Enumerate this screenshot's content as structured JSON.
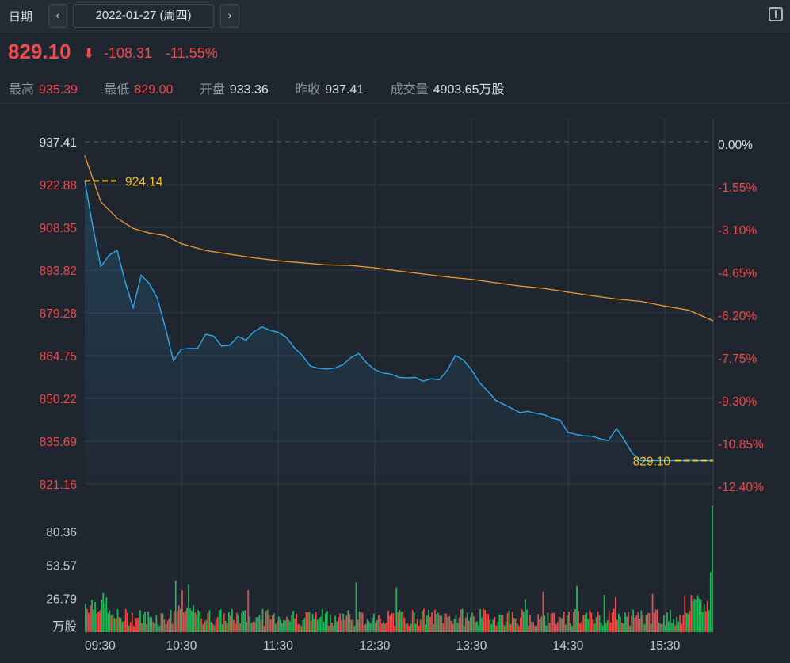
{
  "header": {
    "date_label": "日期",
    "prev_symbol": "‹",
    "next_symbol": "›",
    "date_value": "2022-01-27 (周四)",
    "panel_icon": "panel-toggle-icon"
  },
  "quote": {
    "price": "829.10",
    "arrow": "⬇",
    "change": "-108.31",
    "change_pct": "-11.55%"
  },
  "stats": [
    {
      "label": "最高",
      "value": "935.39",
      "color": "red"
    },
    {
      "label": "最低",
      "value": "829.00",
      "color": "red"
    },
    {
      "label": "开盘",
      "value": "933.36",
      "color": "white"
    },
    {
      "label": "昨收",
      "value": "937.41",
      "color": "white"
    },
    {
      "label": "成交量",
      "value": "4903.65万股",
      "color": "white"
    }
  ],
  "colors": {
    "price_line": "#2fb0f5",
    "avg_line": "#f39b2d",
    "up": "#f04a4a",
    "down": "#27b45a",
    "marker": "#f5c518"
  },
  "chart_data": {
    "type": "line",
    "prev_close": 937.41,
    "price_ticks": [
      "937.41",
      "922.88",
      "908.35",
      "893.82",
      "879.28",
      "864.75",
      "850.22",
      "835.69",
      "821.16"
    ],
    "pct_ticks": [
      "0.00%",
      "-1.55%",
      "-3.10%",
      "-4.65%",
      "-6.20%",
      "-7.75%",
      "-9.30%",
      "-10.85%",
      "-12.40%"
    ],
    "ylim": [
      821.16,
      937.41
    ],
    "x_ticks": [
      "09:30",
      "10:30",
      "11:30",
      "12:30",
      "13:30",
      "14:30",
      "15:30"
    ],
    "session": [
      "09:30",
      "16:00"
    ],
    "markers": [
      {
        "label": "924.14",
        "value": 924.14,
        "position": "open"
      },
      {
        "label": "829.10",
        "value": 829.1,
        "position": "close"
      }
    ],
    "series": [
      {
        "x": [
          "09:30",
          "09:35",
          "09:40",
          "09:45",
          "09:50",
          "09:55",
          "10:00",
          "10:05",
          "10:10",
          "10:15",
          "10:20",
          "10:25",
          "10:30",
          "10:35",
          "10:40",
          "10:45",
          "10:50",
          "10:55",
          "11:00",
          "11:05",
          "11:10",
          "11:15",
          "11:20",
          "11:25",
          "11:30",
          "11:35",
          "11:40",
          "11:45",
          "11:50",
          "11:55",
          "12:00",
          "12:05",
          "12:10",
          "12:15",
          "12:20",
          "12:25",
          "12:30",
          "12:35",
          "12:40",
          "12:45",
          "12:50",
          "12:55",
          "13:00",
          "13:05",
          "13:10",
          "13:15",
          "13:20",
          "13:25",
          "13:30",
          "13:35",
          "13:40",
          "13:45",
          "13:50",
          "13:55",
          "14:00",
          "14:05",
          "14:10",
          "14:15",
          "14:20",
          "14:25",
          "14:30",
          "14:35",
          "14:40",
          "14:45",
          "14:50",
          "14:55",
          "15:00",
          "15:05",
          "15:10",
          "15:15",
          "15:20",
          "15:25",
          "15:30",
          "15:35",
          "15:40",
          "15:45",
          "15:50",
          "15:55",
          "16:00"
        ],
        "values": [
          924.14,
          908.5,
          895.0,
          898.8,
          900.6,
          890.0,
          881.0,
          892.1,
          889.3,
          884.3,
          874.3,
          863.0,
          867.0,
          867.2,
          867.2,
          872.0,
          871.4,
          868.0,
          868.3,
          871.3,
          870.0,
          873.0,
          874.5,
          873.4,
          872.7,
          871.0,
          867.5,
          864.8,
          861.2,
          860.5,
          860.2,
          860.5,
          861.6,
          864.0,
          865.5,
          862.3,
          860.0,
          858.9,
          858.5,
          857.4,
          857.2,
          857.4,
          856.1,
          856.9,
          856.6,
          859.8,
          864.8,
          863.3,
          860.0,
          855.6,
          852.8,
          849.6,
          848.2,
          846.9,
          845.4,
          845.8,
          845.2,
          844.7,
          843.5,
          842.9,
          838.6,
          838.0,
          837.5,
          837.4,
          836.5,
          835.9,
          840.0,
          836.0,
          831.5,
          829.1,
          829.1,
          829.1,
          829.1,
          829.1,
          829.1,
          829.1,
          829.1,
          829.1,
          829.1
        ]
      },
      {
        "x": [
          "09:30",
          "09:40",
          "09:50",
          "10:00",
          "10:10",
          "10:20",
          "10:30",
          "10:45",
          "11:00",
          "11:15",
          "11:30",
          "11:45",
          "12:00",
          "12:15",
          "12:30",
          "12:45",
          "13:00",
          "13:15",
          "13:30",
          "13:45",
          "14:00",
          "14:15",
          "14:30",
          "14:45",
          "15:00",
          "15:15",
          "15:30",
          "15:45",
          "16:00"
        ],
        "values": [
          932.7,
          917.0,
          911.5,
          908.0,
          906.4,
          905.5,
          902.8,
          900.5,
          899.2,
          898.0,
          897.0,
          896.3,
          895.6,
          895.4,
          894.6,
          893.5,
          892.5,
          891.5,
          890.7,
          889.5,
          888.4,
          887.6,
          886.3,
          885.1,
          884.0,
          883.2,
          881.6,
          880.2,
          876.6
        ]
      }
    ],
    "volume": {
      "unit": "万股",
      "ticks": [
        "80.36",
        "53.57",
        "26.79"
      ],
      "ylim": [
        0,
        107.14
      ],
      "max": 101.0
    }
  }
}
